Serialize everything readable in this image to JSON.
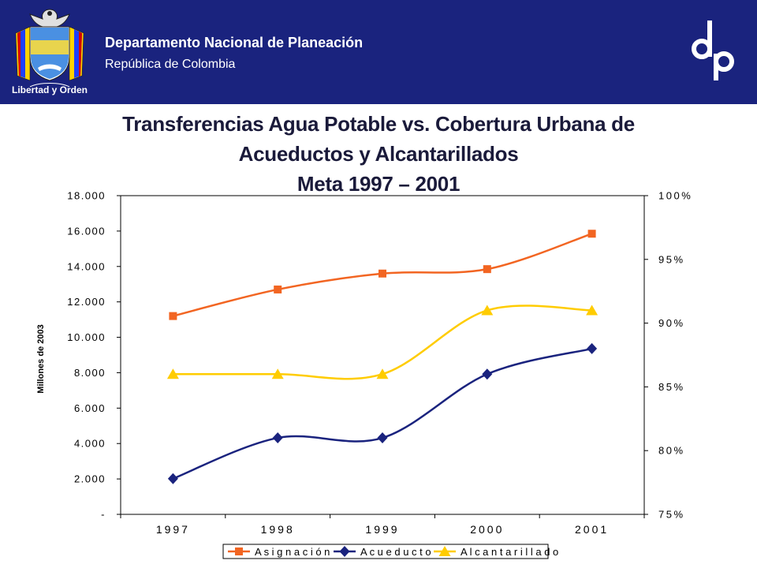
{
  "header": {
    "org_name": "Departamento Nacional de Planeación",
    "org_sub": "República de Colombia",
    "emblem_caption": "Libertad y Orden",
    "logo_text": "dnp",
    "colors": {
      "background": "#1a237e",
      "text": "#ffffff"
    }
  },
  "chart_data": {
    "type": "line",
    "title_lines": [
      "Transferencias Agua Potable vs. Cobertura Urbana de",
      "Acueductos y Alcantarillados",
      "Meta  1997 – 2001"
    ],
    "categories": [
      "1997",
      "1998",
      "1999",
      "2000",
      "2001"
    ],
    "ylabel_left": "Millones de 2003",
    "y_left": {
      "min": 0,
      "max": 18000,
      "ticks": [
        {
          "value": 0,
          "label": "-"
        },
        {
          "value": 2000,
          "label": "2.000"
        },
        {
          "value": 4000,
          "label": "4.000"
        },
        {
          "value": 6000,
          "label": "6.000"
        },
        {
          "value": 8000,
          "label": "8.000"
        },
        {
          "value": 10000,
          "label": "10.000"
        },
        {
          "value": 12000,
          "label": "12.000"
        },
        {
          "value": 14000,
          "label": "14.000"
        },
        {
          "value": 16000,
          "label": "16.000"
        },
        {
          "value": 18000,
          "label": "18.000"
        }
      ]
    },
    "y_right": {
      "min": 75,
      "max": 100,
      "unit": "%",
      "ticks": [
        {
          "value": 75,
          "label": "75%"
        },
        {
          "value": 80,
          "label": "80%"
        },
        {
          "value": 85,
          "label": "85%"
        },
        {
          "value": 90,
          "label": "90%"
        },
        {
          "value": 95,
          "label": "95%"
        },
        {
          "value": 100,
          "label": "100%"
        }
      ]
    },
    "series": [
      {
        "name": "Asignación",
        "axis": "left",
        "values": [
          11200,
          12700,
          13600,
          13850,
          15850
        ],
        "color": "#f26522",
        "marker": "square"
      },
      {
        "name": "Acueducto",
        "axis": "right",
        "values": [
          77.8,
          81.0,
          81.0,
          86.0,
          88.0
        ],
        "color": "#1a237e",
        "marker": "diamond"
      },
      {
        "name": "Alcantarillado",
        "axis": "right",
        "values": [
          86.0,
          86.0,
          86.0,
          91.0,
          91.0
        ],
        "color": "#ffcc00",
        "marker": "triangle"
      }
    ],
    "grid": false,
    "legend_position": "bottom"
  }
}
